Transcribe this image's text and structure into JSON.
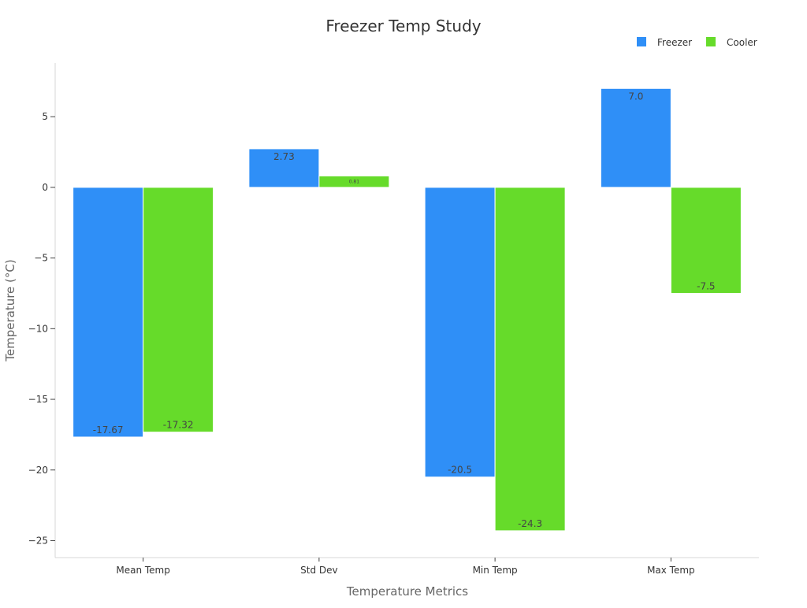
{
  "chart_data": {
    "type": "bar",
    "title": "Freezer Temp Study",
    "xlabel": "Temperature Metrics",
    "ylabel": "Temperature (°C)",
    "categories": [
      "Mean Temp",
      "Std Dev",
      "Min Temp",
      "Max Temp"
    ],
    "series": [
      {
        "name": "Freezer",
        "color": "#2f8ff7",
        "values": [
          -17.67,
          2.73,
          -20.5,
          7.0
        ],
        "labels": [
          "-17.67",
          "2.73",
          "-20.5",
          "7.0"
        ]
      },
      {
        "name": "Cooler",
        "color": "#66db2a",
        "values": [
          -17.32,
          0.81,
          -24.3,
          -7.5
        ],
        "labels": [
          "-17.32",
          "0.81",
          "-24.3",
          "-7.5"
        ]
      }
    ],
    "ylim": [
      -26.2,
      8.8
    ],
    "yticks": [
      5,
      0,
      -5,
      -10,
      -15,
      -20,
      -25
    ],
    "ytick_labels": [
      "5",
      "0",
      "−5",
      "−10",
      "−15",
      "−20",
      "−25"
    ],
    "grid": false,
    "legend_position": "top-right"
  }
}
